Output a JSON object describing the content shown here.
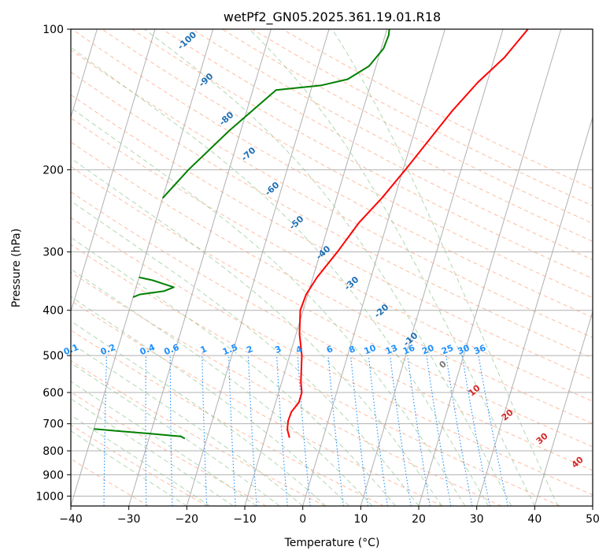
{
  "chart_data": {
    "type": "line",
    "subtype": "skew-T log-P diagram",
    "title": "wetPf2_GN05.2025.361.19.01.R18",
    "xlabel": "Temperature (°C)",
    "ylabel": "Pressure (hPa)",
    "xlim": [
      -40,
      50
    ],
    "ylim": [
      1050,
      100
    ],
    "x_ticks": [
      -40,
      -30,
      -20,
      -10,
      0,
      10,
      20,
      30,
      40,
      50
    ],
    "x_tick_labels": [
      "−40",
      "−30",
      "−20",
      "−10",
      "0",
      "10",
      "20",
      "30",
      "40",
      "50"
    ],
    "y_ticks": [
      1000,
      900,
      800,
      700,
      600,
      500,
      400,
      300,
      200,
      100
    ],
    "y_tick_labels": [
      "1000",
      "900",
      "800",
      "700",
      "600",
      "500",
      "400",
      "300",
      "200",
      "100"
    ],
    "colors": {
      "temperature": "#ff0000",
      "dewpoint": "#008000",
      "isotherm": "#b0b0b0",
      "dry_adiabat": "#ffa07a",
      "moist_adiabat": "#90c890",
      "mixing_ratio": "#1e90ff",
      "saturation_label": "#1f6fb4",
      "wetbulb_label": "#d62728"
    },
    "series": [
      {
        "name": "Temperature",
        "points": [
          {
            "p": 750,
            "t": -5.8
          },
          {
            "p": 720,
            "t": -6.6
          },
          {
            "p": 690,
            "t": -6.9
          },
          {
            "p": 660,
            "t": -6.8
          },
          {
            "p": 630,
            "t": -6.0
          },
          {
            "p": 600,
            "t": -6.0
          },
          {
            "p": 570,
            "t": -6.7
          },
          {
            "p": 500,
            "t": -7.9
          },
          {
            "p": 450,
            "t": -9.4
          },
          {
            "p": 400,
            "t": -10.5
          },
          {
            "p": 370,
            "t": -10.3
          },
          {
            "p": 340,
            "t": -9.3
          },
          {
            "p": 300,
            "t": -7.1
          },
          {
            "p": 260,
            "t": -4.9
          },
          {
            "p": 230,
            "t": -2.2
          },
          {
            "p": 200,
            "t": 0.4
          },
          {
            "p": 150,
            "t": 5.4
          },
          {
            "p": 130,
            "t": 8.4
          },
          {
            "p": 115,
            "t": 11.7
          },
          {
            "p": 100,
            "t": 14.3
          }
        ]
      },
      {
        "name": "Dewpoint (lower)",
        "points": [
          {
            "p": 753,
            "t": -23.8
          },
          {
            "p": 745,
            "t": -24.6
          },
          {
            "p": 735,
            "t": -30.0
          },
          {
            "p": 725,
            "t": -36.0
          },
          {
            "p": 718,
            "t": -40.0
          }
        ]
      },
      {
        "name": "Dewpoint (mid)",
        "points": [
          {
            "p": 375,
            "t": -40.0
          },
          {
            "p": 370,
            "t": -39.0
          },
          {
            "p": 364,
            "t": -35.0
          },
          {
            "p": 357,
            "t": -33.5
          },
          {
            "p": 351,
            "t": -35.5
          },
          {
            "p": 345,
            "t": -37.5
          },
          {
            "p": 340,
            "t": -40.0
          }
        ]
      },
      {
        "name": "Dewpoint (upper)",
        "points": [
          {
            "p": 230,
            "t": -40.0
          },
          {
            "p": 200,
            "t": -37.0
          },
          {
            "p": 165,
            "t": -32.0
          },
          {
            "p": 135,
            "t": -26.0
          },
          {
            "p": 132,
            "t": -18.5
          },
          {
            "p": 128,
            "t": -14.2
          },
          {
            "p": 120,
            "t": -11.2
          },
          {
            "p": 110,
            "t": -9.6
          },
          {
            "p": 103,
            "t": -9.4
          },
          {
            "p": 100,
            "t": -9.6
          }
        ]
      }
    ],
    "saturation_adiabat_labels": [
      "-100",
      "-90",
      "-80",
      "-70",
      "-60",
      "-50",
      "-40",
      "-30",
      "-20",
      "-10"
    ],
    "wetbulb_labels": [
      "0",
      "10",
      "20",
      "30",
      "40"
    ],
    "mixing_ratio_labels": [
      "0.1",
      "0.2",
      "0.4",
      "0.6",
      "1",
      "1.5",
      "2",
      "3",
      "4",
      "6",
      "8",
      "10",
      "13",
      "16",
      "20",
      "25",
      "30",
      "36"
    ]
  }
}
